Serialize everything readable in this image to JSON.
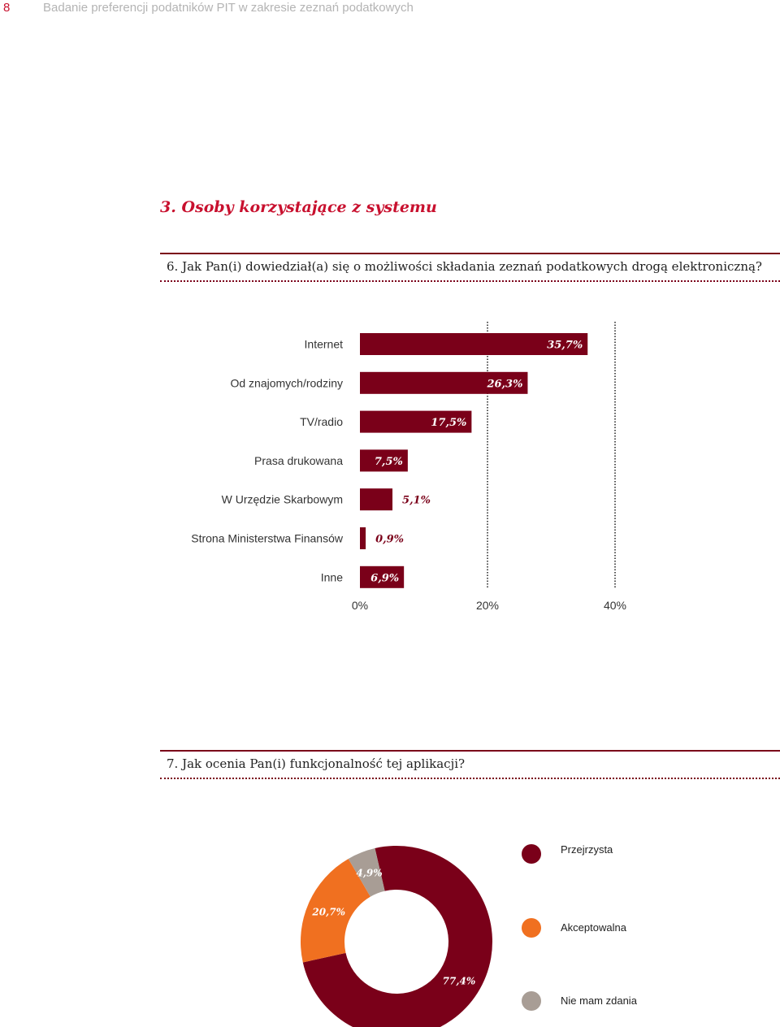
{
  "header": {
    "page_number": "8",
    "running_title": "Badanie preferencji podatników PIT w zakresie zeznań podatkowych"
  },
  "section": {
    "title": "3. Osoby korzystające z systemu"
  },
  "questions": {
    "q6": "6. Jak Pan(i) dowiedział(a) się o możliwości składania zeznań podatkowych drogą elektroniczną?",
    "q7": "7. Jak ocenia Pan(i) funkcjonalność tej aplikacji?"
  },
  "colors": {
    "accent": "#7a0019",
    "orange": "#f07020",
    "gray": "#a89d95",
    "red_text": "#c8102e"
  },
  "chart_data": [
    {
      "type": "bar",
      "orientation": "horizontal",
      "categories": [
        "Internet",
        "Od znajomych/rodziny",
        "TV/radio",
        "Prasa drukowana",
        "W Urzędzie Skarbowym",
        "Strona Ministerstwa Finansów",
        "Inne"
      ],
      "values": [
        35.7,
        26.3,
        17.5,
        7.5,
        5.1,
        0.9,
        6.9
      ],
      "value_labels": [
        "35,7%",
        "26,3%",
        "17,5%",
        "7,5%",
        "5,1%",
        "0,9%",
        "6,9%"
      ],
      "xlim": [
        0,
        40
      ],
      "x_ticks": [
        0,
        20,
        40
      ],
      "x_tick_labels": [
        "0%",
        "20%",
        "40%"
      ],
      "grid": "vertical dotted at 20% and 40%"
    },
    {
      "type": "pie",
      "style": "donut",
      "categories": [
        "Przejrzysta",
        "Akceptowalna",
        "Nie mam zdania"
      ],
      "values": [
        77.4,
        20.7,
        4.9
      ],
      "value_labels": [
        "77,4%",
        "20,7%",
        "4,9%"
      ],
      "colors": [
        "#7a0019",
        "#f07020",
        "#a89d95"
      ],
      "legend": "right"
    }
  ]
}
